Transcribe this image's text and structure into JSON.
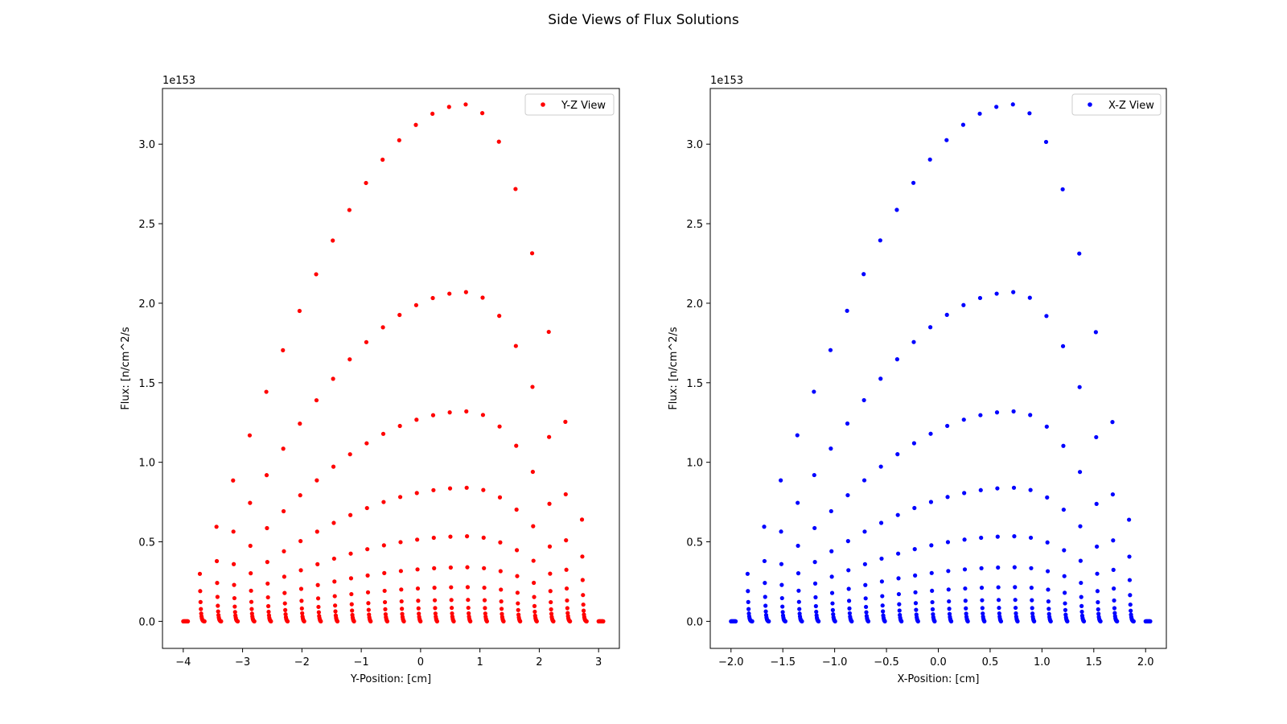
{
  "figure_title": "Side Views of Flux Solutions",
  "chart_data": [
    {
      "type": "scatter",
      "title": "",
      "xlabel": "Y-Position: [cm]",
      "ylabel": "Flux: [n/cm^2/s",
      "offset_text": "1e153",
      "xlim": [
        -4.35,
        3.35
      ],
      "ylim": [
        -0.17,
        3.35
      ],
      "xticks": [
        -4,
        -3,
        -2,
        -1,
        0,
        1,
        2,
        3
      ],
      "xtick_labels": [
        "−4",
        "−3",
        "−2",
        "−1",
        "0",
        "1",
        "2",
        "3"
      ],
      "yticks": [
        0.0,
        0.5,
        1.0,
        1.5,
        2.0,
        2.5,
        3.0
      ],
      "ytick_labels": [
        "0.0",
        "0.5",
        "1.0",
        "1.5",
        "2.0",
        "2.5",
        "3.0"
      ],
      "grid": false,
      "legend_position": "top-right",
      "series": [
        {
          "name": "Y-Z View",
          "color": "#ff0000",
          "marker": "dot",
          "x_min": -4.0,
          "x_max": 3.0,
          "x_peak": 0.78,
          "columns": 26,
          "levels": [
            3.25,
            2.07,
            1.32,
            0.84,
            0.535,
            0.34,
            0.215,
            0.135,
            0.085,
            0.05,
            0.03,
            0.017,
            0.008,
            0.003,
            0.0
          ]
        }
      ]
    },
    {
      "type": "scatter",
      "title": "",
      "xlabel": "X-Position: [cm]",
      "ylabel": "Flux: [n/cm^2/s",
      "offset_text": "1e153",
      "xlim": [
        -2.2,
        2.2
      ],
      "ylim": [
        -0.17,
        3.35
      ],
      "xticks": [
        -2.0,
        -1.5,
        -1.0,
        -0.5,
        0.0,
        0.5,
        1.0,
        1.5,
        2.0
      ],
      "xtick_labels": [
        "−2.0",
        "−1.5",
        "−1.0",
        "−0.5",
        "0.0",
        "0.5",
        "1.0",
        "1.5",
        "2.0"
      ],
      "yticks": [
        0.0,
        0.5,
        1.0,
        1.5,
        2.0,
        2.5,
        3.0
      ],
      "ytick_labels": [
        "0.0",
        "0.5",
        "1.0",
        "1.5",
        "2.0",
        "2.5",
        "3.0"
      ],
      "grid": false,
      "legend_position": "top-right",
      "series": [
        {
          "name": "X-Z View",
          "color": "#0000ff",
          "marker": "dot",
          "x_min": -2.0,
          "x_max": 2.0,
          "x_peak": 0.73,
          "columns": 26,
          "levels": [
            3.25,
            2.07,
            1.32,
            0.84,
            0.535,
            0.34,
            0.215,
            0.135,
            0.085,
            0.05,
            0.03,
            0.017,
            0.008,
            0.003,
            0.0
          ]
        }
      ]
    }
  ]
}
